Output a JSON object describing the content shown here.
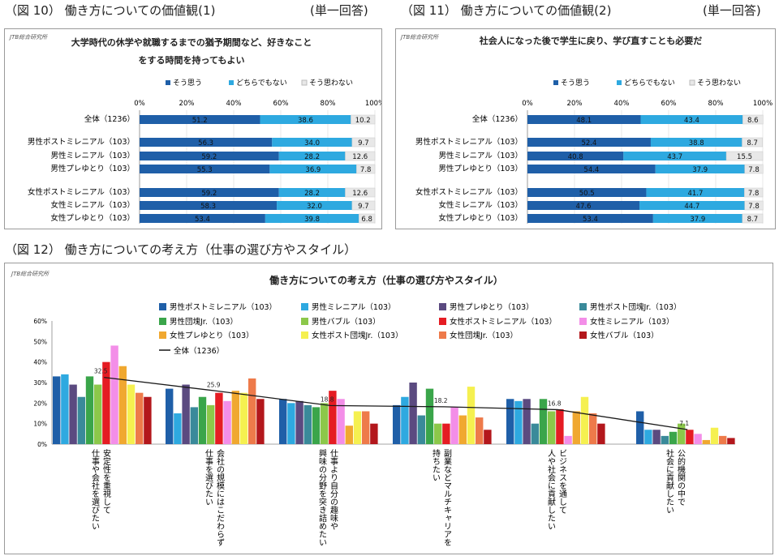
{
  "figures": {
    "fig10": {
      "caption": "（図 10） 働き方についての価値観(1)",
      "note": "(単一回答)",
      "source": "JTB総合研究所"
    },
    "fig11": {
      "caption": "（図 11） 働き方についての価値観(2)",
      "note": "(単一回答)",
      "source": "JTB総合研究所"
    },
    "fig12": {
      "caption": "（図 12） 働き方についての考え方（仕事の選び方やスタイル）",
      "source": "JTB総合研究所"
    }
  },
  "colors": {
    "agree": "#1f5fa8",
    "neither": "#2ea9e0",
    "disagree": "#e8e8e8",
    "series12": [
      "#1f5fa8",
      "#2ea9e0",
      "#5b4a80",
      "#3a8a9a",
      "#3aa54a",
      "#8cc84a",
      "#e51c23",
      "#f38ee8",
      "#f0a830",
      "#f5f050",
      "#ee7a4a",
      "#b3171c"
    ]
  },
  "chart_data": [
    {
      "type": "bar",
      "orientation": "horizontal-stacked-100",
      "title": "大学時代の休学や就職するまでの猶予期間など、好きなことをする時間を持ってもよい",
      "legend": [
        "そう思う",
        "どちらでもない",
        "そう思わない"
      ],
      "xticks": [
        "0%",
        "20%",
        "40%",
        "60%",
        "80%",
        "100%"
      ],
      "categories": [
        "全体（1236）",
        "男性ポストミレニアル（103）",
        "男性ミレニアル（103）",
        "男性プレゆとり（103）",
        "女性ポストミレニアル（103）",
        "女性ミレニアル（103）",
        "女性プレゆとり（103）"
      ],
      "series": [
        {
          "name": "そう思う",
          "values": [
            51.2,
            56.3,
            59.2,
            55.3,
            59.2,
            58.3,
            53.4
          ]
        },
        {
          "name": "どちらでもない",
          "values": [
            38.6,
            34.0,
            28.2,
            36.9,
            28.2,
            32.0,
            39.8
          ]
        },
        {
          "name": "そう思わない",
          "values": [
            10.2,
            9.7,
            12.6,
            7.8,
            12.6,
            9.7,
            6.8
          ]
        }
      ]
    },
    {
      "type": "bar",
      "orientation": "horizontal-stacked-100",
      "title": "社会人になった後で学生に戻り、学び直すことも必要だ",
      "legend": [
        "そう思う",
        "どちらでもない",
        "そう思わない"
      ],
      "xticks": [
        "0%",
        "20%",
        "40%",
        "60%",
        "80%",
        "100%"
      ],
      "categories": [
        "全体（1236）",
        "男性ポストミレニアル（103）",
        "男性ミレニアル（103）",
        "男性プレゆとり（103）",
        "女性ポストミレニアル（103）",
        "女性ミレニアル（103）",
        "女性プレゆとり（103）"
      ],
      "series": [
        {
          "name": "そう思う",
          "values": [
            48.1,
            52.4,
            40.8,
            54.4,
            50.5,
            47.6,
            53.4
          ]
        },
        {
          "name": "どちらでもない",
          "values": [
            43.4,
            38.8,
            43.7,
            37.9,
            41.7,
            44.7,
            37.9
          ]
        },
        {
          "name": "そう思わない",
          "values": [
            8.6,
            8.7,
            15.5,
            7.8,
            7.8,
            7.8,
            8.7
          ]
        }
      ]
    },
    {
      "type": "bar",
      "orientation": "vertical-grouped-with-line",
      "title": "働き方についての考え方（仕事の選び方やスタイル）",
      "ylim": [
        0,
        60
      ],
      "yticks": [
        "0%",
        "10%",
        "20%",
        "30%",
        "40%",
        "50%",
        "60%"
      ],
      "categories": [
        "安定性を重視して\n仕事や会社を選びたい",
        "会社の規模にはこだわらず\n仕事を選びたい",
        "仕事より自分の趣味や\n興味の分野を突き詰めたい",
        "副業などマルチキャリアを\n持ちたい",
        "ビジネスを通して\n人や社会に貢献したい",
        "公的機関の中で\n社会に貢献したい"
      ],
      "series": [
        {
          "name": "男性ポストミレニアル（103）",
          "values": [
            33,
            27,
            22,
            19,
            22,
            16
          ]
        },
        {
          "name": "男性ミレニアル（103）",
          "values": [
            34,
            15,
            20,
            23,
            21,
            7
          ]
        },
        {
          "name": "男性プレゆとり（103）",
          "values": [
            29,
            29,
            21,
            30,
            22,
            7
          ]
        },
        {
          "name": "男性ポスト団塊Jr.（103）",
          "values": [
            23,
            18,
            19,
            14,
            10,
            4
          ]
        },
        {
          "name": "男性団塊Jr.（103）",
          "values": [
            33,
            23,
            18,
            27,
            22,
            6
          ]
        },
        {
          "name": "男性バブル（103）",
          "values": [
            29,
            19,
            20,
            10,
            16,
            10
          ]
        },
        {
          "name": "女性ポストミレニアル（103）",
          "values": [
            40,
            25,
            26,
            10,
            17,
            7
          ]
        },
        {
          "name": "女性ミレニアル（103）",
          "values": [
            48,
            21,
            22,
            18,
            4,
            5
          ]
        },
        {
          "name": "女性プレゆとり（103）",
          "values": [
            38,
            26,
            9,
            14,
            16,
            2
          ]
        },
        {
          "name": "女性ポスト団塊Jr.（103）",
          "values": [
            29,
            25,
            16,
            28,
            23,
            8
          ]
        },
        {
          "name": "女性団塊Jr.（103）",
          "values": [
            25,
            32,
            16,
            13,
            15,
            4
          ]
        },
        {
          "name": "女性バブル（103）",
          "values": [
            23,
            22,
            10,
            7,
            10,
            3
          ]
        }
      ],
      "line": {
        "name": "全体（1236）",
        "values": [
          32.5,
          25.9,
          18.8,
          18.2,
          16.8,
          7.1
        ],
        "labels": [
          "32.5",
          "25.9",
          "18.8",
          "18.2",
          "16.8",
          "7.1"
        ]
      }
    }
  ]
}
